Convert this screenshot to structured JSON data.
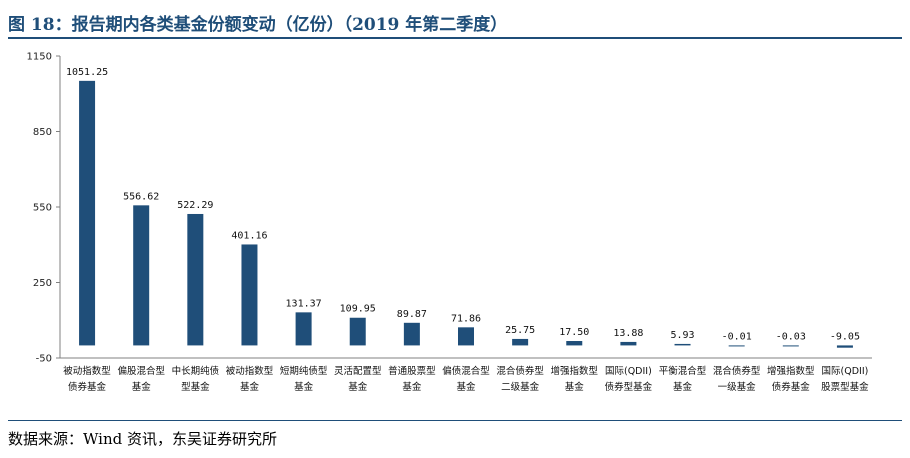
{
  "header": {
    "title": "图 18：报告期内各类基金份额变动（亿份）（2019 年第二季度）",
    "source": "数据来源：Wind 资讯，东吴证券研究所"
  },
  "colors": {
    "bar": "#1f4e79",
    "title": "#1f4e79",
    "axis": "#808080"
  },
  "chart_data": {
    "type": "bar",
    "title": "",
    "xlabel": "",
    "ylabel": "",
    "ylim": [
      -50,
      1150
    ],
    "yticks": [
      -50,
      250,
      550,
      850,
      1150
    ],
    "grid": false,
    "legend": "none",
    "categories": [
      [
        "被动指数型",
        "债券基金"
      ],
      [
        "偏股混合型",
        "基金"
      ],
      [
        "中长期纯债",
        "型基金"
      ],
      [
        "被动指数型",
        "基金"
      ],
      [
        "短期纯债型",
        "基金"
      ],
      [
        "灵活配置型",
        "基金"
      ],
      [
        "普通股票型",
        "基金"
      ],
      [
        "偏债混合型",
        "基金"
      ],
      [
        "混合债券型",
        "二级基金"
      ],
      [
        "增强指数型",
        "基金"
      ],
      [
        "国际(QDII)",
        "债券型基金"
      ],
      [
        "平衡混合型",
        "基金"
      ],
      [
        "混合债券型",
        "一级基金"
      ],
      [
        "增强指数型",
        "债券基金"
      ],
      [
        "国际(QDII)",
        "股票型基金"
      ]
    ],
    "values": [
      1051.25,
      556.62,
      522.29,
      401.16,
      131.37,
      109.95,
      89.87,
      71.86,
      25.75,
      17.5,
      13.88,
      5.93,
      -0.01,
      -0.03,
      -9.05
    ],
    "labels": [
      "1051.25",
      "556.62",
      "522.29",
      "401.16",
      "131.37",
      "109.95",
      "89.87",
      "71.86",
      "25.75",
      "17.50",
      "13.88",
      "5.93",
      "-0.01",
      "-0.03",
      "-9.05"
    ]
  }
}
